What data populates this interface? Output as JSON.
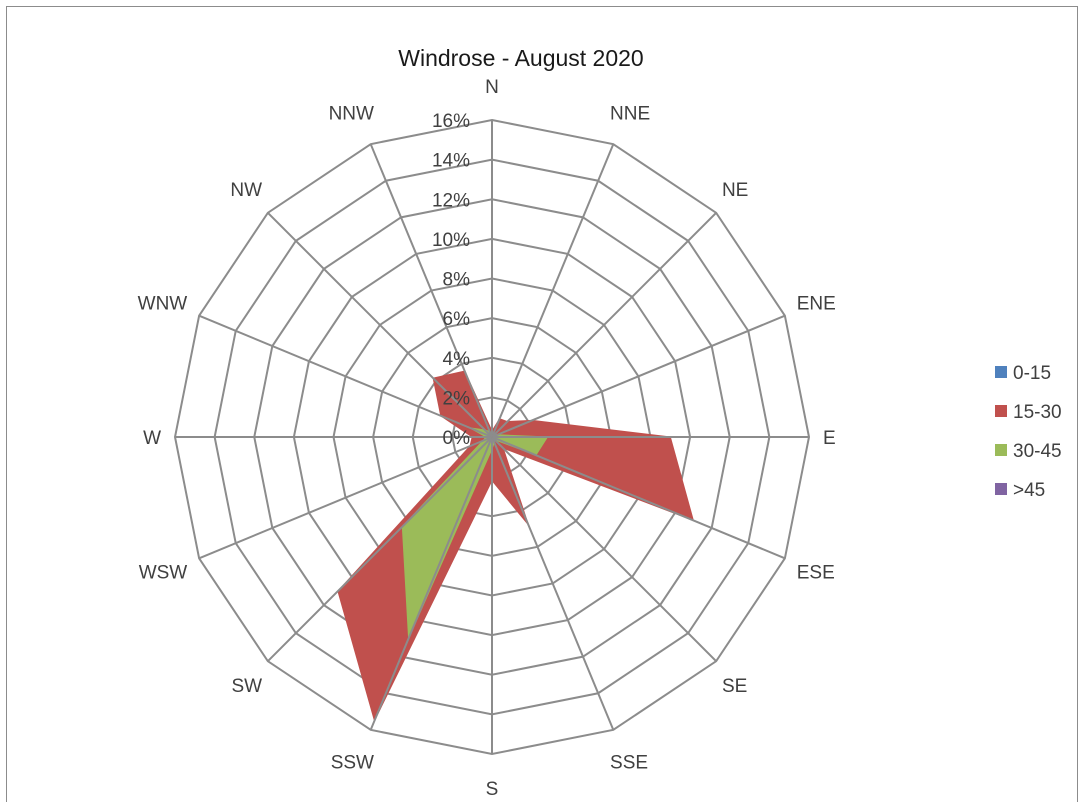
{
  "chart_data": {
    "type": "radar",
    "title": "Windrose - August 2020",
    "directions": [
      "N",
      "NNE",
      "NE",
      "ENE",
      "E",
      "ESE",
      "SE",
      "SSE",
      "S",
      "SSW",
      "SW",
      "WSW",
      "W",
      "WNW",
      "NW",
      "NNW"
    ],
    "rlim": [
      0,
      16
    ],
    "ticks": [
      "0%",
      "2%",
      "4%",
      "6%",
      "8%",
      "10%",
      "12%",
      "14%",
      "16%"
    ],
    "tick_values": [
      0,
      2,
      4,
      6,
      8,
      10,
      12,
      14,
      16
    ],
    "grid": true,
    "legend_position": "right",
    "series": [
      {
        "name": "0-15",
        "color": "#4f81bd",
        "values": [
          0,
          0,
          0,
          0,
          0,
          0,
          0,
          0,
          0,
          0,
          0,
          0,
          0,
          0,
          0,
          0
        ]
      },
      {
        "name": "15-30",
        "color": "#c0504d",
        "values": [
          0.3,
          1.0,
          1.1,
          2.2,
          9.0,
          11.0,
          0.8,
          4.8,
          2.2,
          15.5,
          11.0,
          1.2,
          1.0,
          2.8,
          4.2,
          3.6
        ]
      },
      {
        "name": "30-45",
        "color": "#9bbb59",
        "values": [
          0.1,
          0.2,
          0.2,
          0.3,
          2.8,
          2.4,
          0.2,
          0.3,
          0.6,
          11.0,
          6.4,
          0.5,
          0.3,
          1.2,
          0.5,
          0.3
        ]
      },
      {
        "name": ">45",
        "color": "#8064a2",
        "values": [
          0,
          0,
          0,
          0,
          0,
          0,
          0,
          0,
          0,
          0,
          0,
          0,
          0,
          0,
          0,
          0
        ]
      }
    ]
  }
}
